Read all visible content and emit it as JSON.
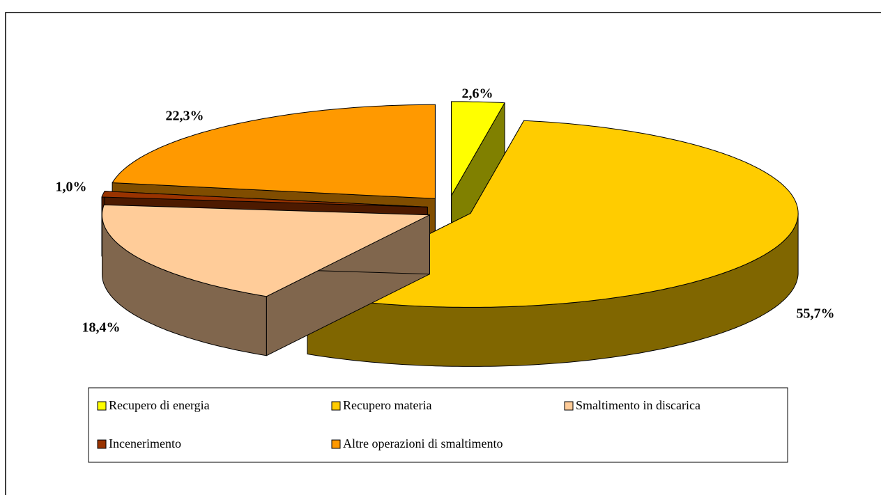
{
  "chart_data": {
    "type": "pie3d",
    "categories": [
      "Recupero di energia",
      "Recupero materia",
      "Smaltimento in discarica",
      "Incenerimento",
      "Altre operazioni di smaltimento"
    ],
    "values": [
      2.6,
      55.7,
      18.4,
      1.0,
      22.3
    ],
    "value_labels": [
      "2,6%",
      "55,7%",
      "18,4%",
      "1,0%",
      "22,3%"
    ],
    "colors": [
      "#ffff00",
      "#ffcc00",
      "#ffcc99",
      "#993300",
      "#ff9900"
    ],
    "legend": "bottom"
  }
}
